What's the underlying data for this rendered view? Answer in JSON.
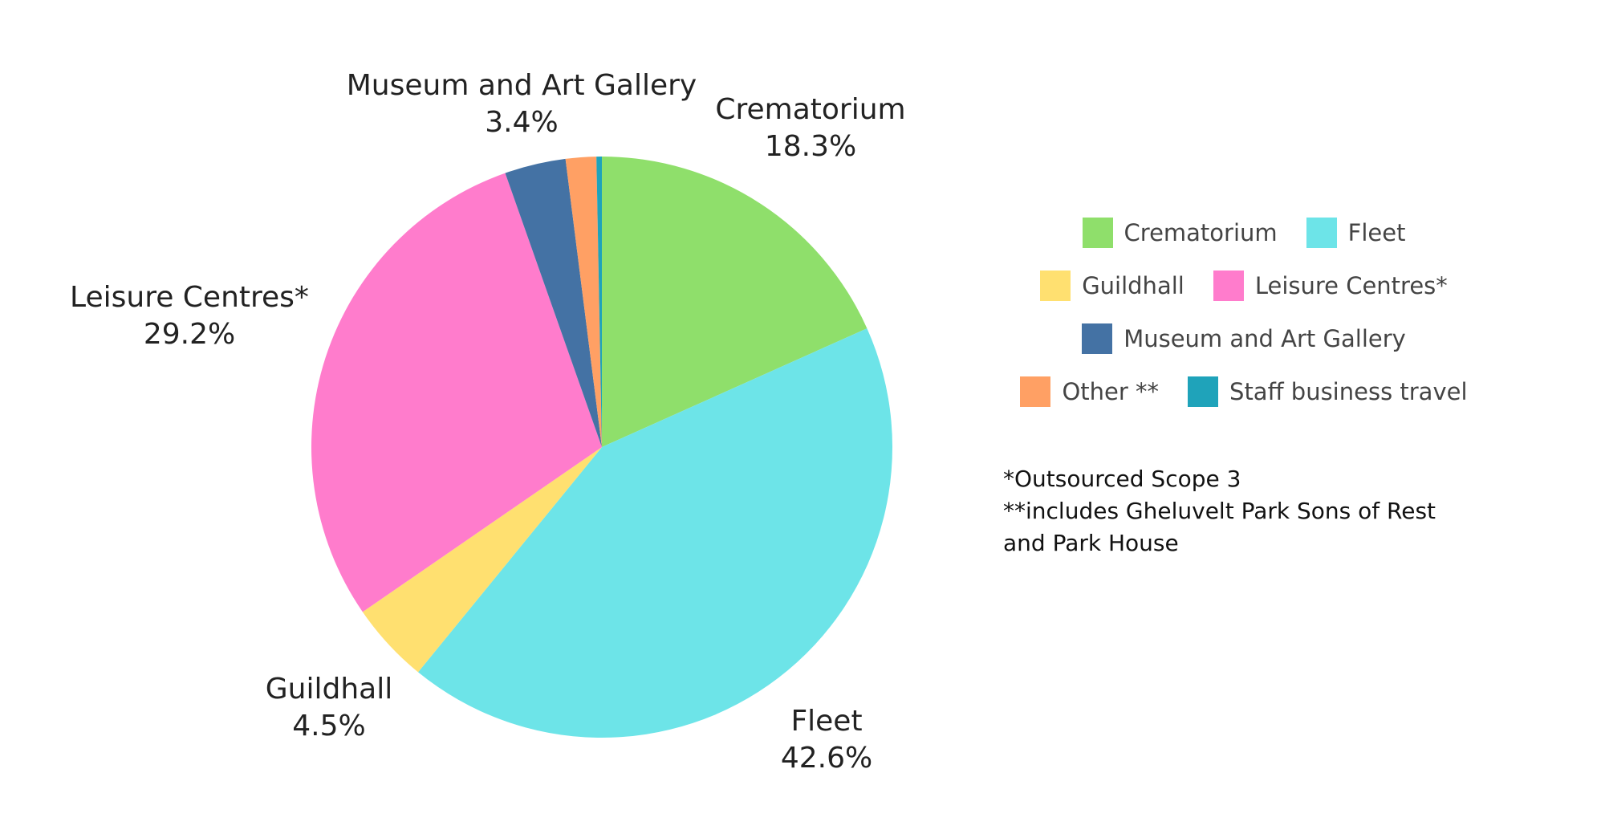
{
  "chart_data": {
    "type": "pie",
    "categories": [
      "Crematorium",
      "Fleet",
      "Guildhall",
      "Leisure Centres*",
      "Museum and Art Gallery",
      "Other **",
      "Staff business travel"
    ],
    "values": [
      18.3,
      42.6,
      4.5,
      29.2,
      3.4,
      1.7,
      0.3
    ],
    "labels": [
      {
        "name": "Crematorium",
        "pct": "18.3%"
      },
      {
        "name": "Fleet",
        "pct": "42.6%"
      },
      {
        "name": "Guildhall",
        "pct": "4.5%"
      },
      {
        "name": "Leisure Centres*",
        "pct": "29.2%"
      },
      {
        "name": "Museum and Art Gallery",
        "pct": "3.4%"
      },
      {
        "name": "Other **",
        "pct": ""
      },
      {
        "name": "Staff business travel",
        "pct": ""
      }
    ],
    "colors": [
      "#8fdf6b",
      "#6de4e8",
      "#ffe070",
      "#ff7ccc",
      "#4472a4",
      "#ffa064",
      "#1fa3ba"
    ],
    "direction": "clockwise",
    "start": "12 o'clock",
    "legend_position": "right",
    "legend_rows": [
      [
        "Crematorium",
        "Fleet"
      ],
      [
        "Guildhall",
        "Leisure Centres*"
      ],
      [
        "Museum and Art Gallery"
      ],
      [
        "Other **",
        "Staff business travel"
      ]
    ]
  },
  "notes": [
    "*Outsourced Scope 3",
    "**includes Gheluvelt Park Sons of Rest",
    "and Park House"
  ]
}
